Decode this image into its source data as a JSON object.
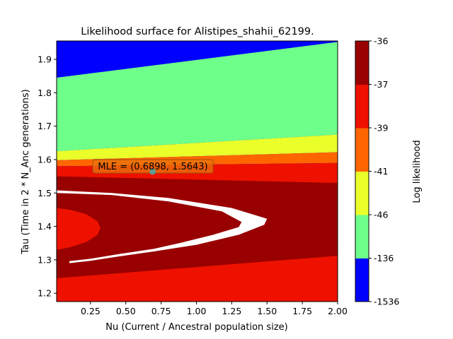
{
  "chart_data": {
    "type": "heatmap",
    "title": "Likelihood surface for Alistipes_shahii_62199.",
    "xlabel": "Nu (Current / Ancestral population size)",
    "ylabel": "Tau (Time in 2 * N_Anc generations)",
    "xlim": [
      0.01,
      2.0
    ],
    "ylim": [
      1.175,
      1.955
    ],
    "x_ticks": [
      "0.25",
      "0.50",
      "0.75",
      "1.00",
      "1.25",
      "1.50",
      "1.75",
      "2.00"
    ],
    "x_tick_values": [
      0.25,
      0.5,
      0.75,
      1.0,
      1.25,
      1.5,
      1.75,
      2.0
    ],
    "y_ticks": [
      "1.2",
      "1.3",
      "1.4",
      "1.5",
      "1.6",
      "1.7",
      "1.8",
      "1.9"
    ],
    "y_tick_values": [
      1.2,
      1.3,
      1.4,
      1.5,
      1.6,
      1.7,
      1.8,
      1.9
    ],
    "colorbar": {
      "label": "Log likelihood",
      "levels": [
        "-1536",
        "-136",
        "-46",
        "-41",
        "-39",
        "-37",
        "-36"
      ],
      "colors": [
        "#0000ff",
        "#6dff8a",
        "#eaff2a",
        "#ff6600",
        "#ee1100",
        "#990000"
      ]
    },
    "mle": {
      "label": "MLE = (0.6898, 1.5643)",
      "nu": 0.6898,
      "tau": 1.5643,
      "marker_color": "#5f9e8f"
    },
    "contour_regions": [
      {
        "level": "-136 to -46",
        "color": "#6dff8a",
        "points": [
          [
            0.01,
            1.845
          ],
          [
            2.0,
            1.952
          ],
          [
            2.0,
            1.675
          ],
          [
            0.01,
            1.625
          ]
        ]
      },
      {
        "level": "-46 to -41",
        "color": "#eaff2a",
        "points": [
          [
            0.01,
            1.625
          ],
          [
            2.0,
            1.675
          ],
          [
            2.0,
            1.622
          ],
          [
            0.01,
            1.598
          ]
        ]
      },
      {
        "level": "-41 to -39",
        "color": "#ff6600",
        "points": [
          [
            0.01,
            1.598
          ],
          [
            2.0,
            1.622
          ],
          [
            2.0,
            1.59
          ],
          [
            0.01,
            1.58
          ]
        ]
      },
      {
        "level": "-39 to -37",
        "color": "#ee1100",
        "points": [
          [
            0.01,
            1.58
          ],
          [
            2.0,
            1.59
          ],
          [
            2.0,
            1.175
          ],
          [
            0.01,
            1.175
          ]
        ]
      },
      {
        "level": "-37 to -36",
        "color": "#990000",
        "points": [
          [
            0.01,
            1.55
          ],
          [
            2.0,
            1.53
          ],
          [
            2.0,
            1.312
          ],
          [
            0.01,
            1.245
          ]
        ]
      },
      {
        "level": "-39 to -37",
        "color": "#ee1100",
        "points": [
          [
            0.01,
            1.455
          ],
          [
            0.1,
            1.45
          ],
          [
            0.22,
            1.437
          ],
          [
            0.3,
            1.415
          ],
          [
            0.32,
            1.395
          ],
          [
            0.3,
            1.375
          ],
          [
            0.22,
            1.353
          ],
          [
            0.1,
            1.337
          ],
          [
            0.01,
            1.33
          ]
        ]
      },
      {
        "level": "-36 max",
        "color": "#ffffff",
        "points": [
          [
            0.01,
            1.508
          ],
          [
            0.4,
            1.5
          ],
          [
            0.8,
            1.485
          ],
          [
            1.25,
            1.455
          ],
          [
            1.5,
            1.423
          ],
          [
            1.48,
            1.405
          ],
          [
            1.3,
            1.375
          ],
          [
            1.0,
            1.345
          ],
          [
            0.7,
            1.325
          ],
          [
            0.45,
            1.31
          ],
          [
            0.25,
            1.297
          ],
          [
            0.1,
            1.29
          ],
          [
            0.1,
            1.296
          ],
          [
            0.25,
            1.303
          ],
          [
            0.45,
            1.317
          ],
          [
            0.7,
            1.333
          ],
          [
            0.9,
            1.352
          ],
          [
            1.12,
            1.375
          ],
          [
            1.3,
            1.398
          ],
          [
            1.32,
            1.413
          ],
          [
            1.18,
            1.445
          ],
          [
            0.8,
            1.475
          ],
          [
            0.4,
            1.494
          ],
          [
            0.01,
            1.5
          ]
        ]
      }
    ]
  }
}
